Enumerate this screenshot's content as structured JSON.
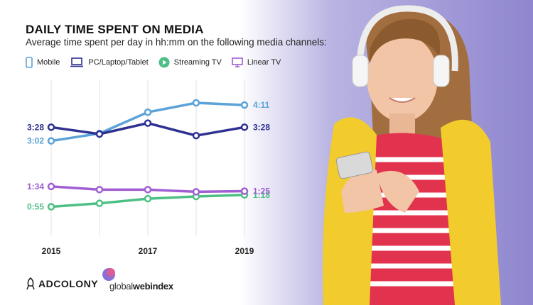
{
  "title": "DAILY TIME SPENT ON MEDIA",
  "subtitle": "Average time spent per day in hh:mm on the following media channels:",
  "legend": [
    {
      "label": "Mobile",
      "icon": "mobile-icon",
      "color": "#5aa2d8"
    },
    {
      "label": "PC/Laptop/Tablet",
      "icon": "laptop-icon",
      "color": "#2e3191"
    },
    {
      "label": "Streaming TV",
      "icon": "play-circle-icon",
      "color": "#4cbf84"
    },
    {
      "label": "Linear TV",
      "icon": "tv-icon",
      "color": "#a05ed2"
    }
  ],
  "chart_data": {
    "type": "line",
    "title": "DAILY TIME SPENT ON MEDIA",
    "subtitle": "Average time spent per day in hh:mm on the following media channels:",
    "x": [
      2015,
      2016,
      2017,
      2018,
      2019
    ],
    "x_tick_labels": [
      "2015",
      "2017",
      "2019"
    ],
    "y_units": "hours",
    "ylim": [
      0,
      5
    ],
    "grid": "vertical",
    "legend_position": "top",
    "series": [
      {
        "name": "Mobile",
        "color": "#5aa2d8",
        "values": [
          3.03,
          3.27,
          3.95,
          4.25,
          4.18
        ],
        "start_label": "3:02",
        "end_label": "4:11"
      },
      {
        "name": "PC/Laptop/Tablet",
        "color": "#2e3191",
        "values": [
          3.47,
          3.25,
          3.6,
          3.2,
          3.47
        ],
        "start_label": "3:28",
        "end_label": "3:28"
      },
      {
        "name": "Streaming TV",
        "color": "#4cbf84",
        "values": [
          0.92,
          1.03,
          1.18,
          1.25,
          1.3
        ],
        "start_label": "0:55",
        "end_label": "1:18"
      },
      {
        "name": "Linear TV",
        "color": "#a05ed2",
        "values": [
          1.57,
          1.47,
          1.47,
          1.4,
          1.42
        ],
        "start_label": "1:34",
        "end_label": "1:25"
      }
    ]
  },
  "brands": {
    "adcolony": "ADCOLONY",
    "gwi_light": "global",
    "gwi_bold": "webindex"
  }
}
